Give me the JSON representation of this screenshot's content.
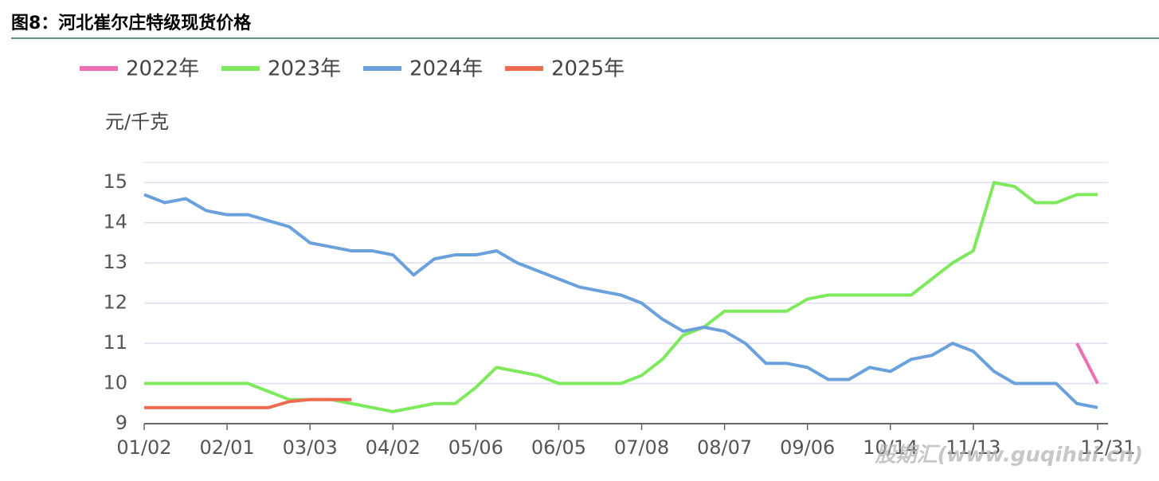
{
  "chart_data": {
    "type": "line",
    "title": "图8：河北崔尔庄特级现货价格",
    "y_label": "元/千克",
    "watermark": "股期汇(www.guqihui.cn)",
    "categories": [
      "01/02",
      null,
      null,
      null,
      "02/01",
      null,
      null,
      null,
      "03/03",
      null,
      null,
      null,
      "04/02",
      null,
      null,
      null,
      "05/06",
      null,
      null,
      null,
      "06/05",
      null,
      null,
      null,
      "07/08",
      null,
      null,
      null,
      "08/07",
      null,
      null,
      null,
      "09/06",
      null,
      null,
      null,
      "10/14",
      null,
      null,
      null,
      "11/13",
      null,
      null,
      null,
      null,
      null,
      "12/31"
    ],
    "ylim": [
      9,
      15.5
    ],
    "yticks": [
      9,
      10,
      11,
      12,
      13,
      14,
      15
    ],
    "grid": true,
    "series": [
      {
        "name": "2022年",
        "color": "#ee6eb4",
        "values": [
          null,
          null,
          null,
          null,
          null,
          null,
          null,
          null,
          null,
          null,
          null,
          null,
          null,
          null,
          null,
          null,
          null,
          null,
          null,
          null,
          null,
          null,
          null,
          null,
          null,
          null,
          null,
          null,
          null,
          null,
          null,
          null,
          null,
          null,
          null,
          null,
          null,
          null,
          null,
          null,
          null,
          null,
          null,
          null,
          null,
          11.0,
          10.0
        ]
      },
      {
        "name": "2023年",
        "color": "#7ee95c",
        "values": [
          10.0,
          10.0,
          10.0,
          10.0,
          10.0,
          10.0,
          9.8,
          9.6,
          9.6,
          9.6,
          9.5,
          9.4,
          9.3,
          9.4,
          9.5,
          9.5,
          9.9,
          10.4,
          10.3,
          10.2,
          10.0,
          10.0,
          10.0,
          10.0,
          10.2,
          10.6,
          11.2,
          11.4,
          11.8,
          11.8,
          11.8,
          11.8,
          12.1,
          12.2,
          12.2,
          12.2,
          12.2,
          12.2,
          12.6,
          13.0,
          13.3,
          15.0,
          14.9,
          14.5,
          14.5,
          14.7,
          14.7
        ]
      },
      {
        "name": "2024年",
        "color": "#6aa1dc",
        "values": [
          14.7,
          14.5,
          14.6,
          14.3,
          14.2,
          14.2,
          14.05,
          13.9,
          13.5,
          13.4,
          13.3,
          13.3,
          13.2,
          12.7,
          13.1,
          13.2,
          13.2,
          13.3,
          13.0,
          12.8,
          12.6,
          12.4,
          12.3,
          12.2,
          12.0,
          11.6,
          11.3,
          11.4,
          11.3,
          11.0,
          10.5,
          10.5,
          10.4,
          10.1,
          10.1,
          10.4,
          10.3,
          10.6,
          10.7,
          11.0,
          10.8,
          10.3,
          10.0,
          10.0,
          10.0,
          9.5,
          9.4
        ]
      },
      {
        "name": "2025年",
        "color": "#ef6a50",
        "values": [
          9.4,
          9.4,
          9.4,
          9.4,
          9.4,
          9.4,
          9.4,
          9.55,
          9.6,
          9.6,
          9.6,
          null,
          null,
          null,
          null,
          null,
          null,
          null,
          null,
          null,
          null,
          null,
          null,
          null,
          null,
          null,
          null,
          null,
          null,
          null,
          null,
          null,
          null,
          null,
          null,
          null,
          null,
          null,
          null,
          null,
          null,
          null,
          null,
          null,
          null,
          null,
          null
        ]
      }
    ]
  }
}
